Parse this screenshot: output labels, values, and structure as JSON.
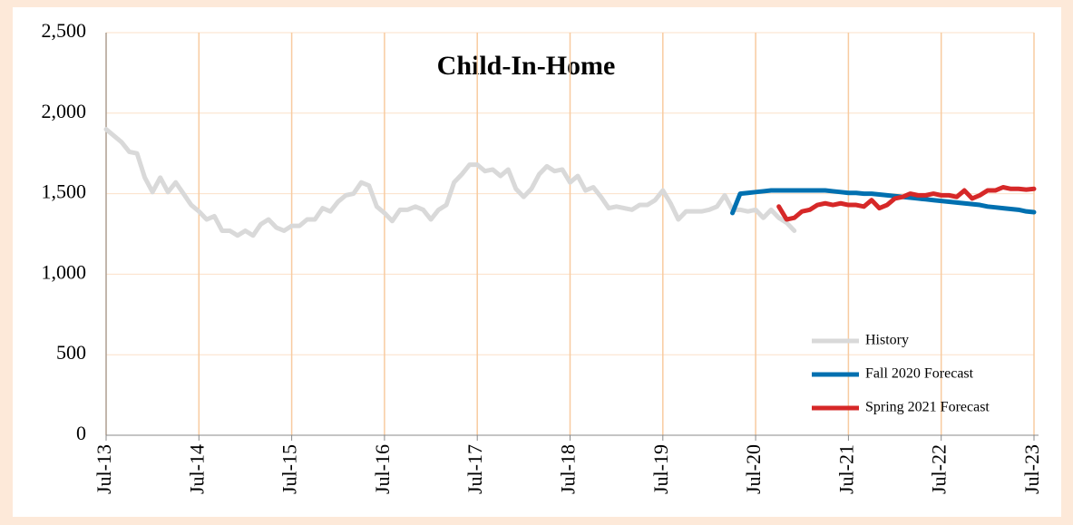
{
  "chart_data": {
    "type": "line",
    "title": "Child-In-Home",
    "categories": [
      "Jul-13",
      null,
      null,
      null,
      null,
      null,
      null,
      null,
      null,
      null,
      null,
      null,
      "Jul-14",
      null,
      null,
      null,
      null,
      null,
      null,
      null,
      null,
      null,
      null,
      null,
      "Jul-15",
      null,
      null,
      null,
      null,
      null,
      null,
      null,
      null,
      null,
      null,
      null,
      "Jul-16",
      null,
      null,
      null,
      null,
      null,
      null,
      null,
      null,
      null,
      null,
      null,
      "Jul-17",
      null,
      null,
      null,
      null,
      null,
      null,
      null,
      null,
      null,
      null,
      null,
      "Jul-18",
      null,
      null,
      null,
      null,
      null,
      null,
      null,
      null,
      null,
      null,
      null,
      "Jul-19",
      null,
      null,
      null,
      null,
      null,
      null,
      null,
      null,
      null,
      null,
      null,
      "Jul-20",
      null,
      null,
      null,
      null,
      null,
      null,
      null,
      null,
      null,
      null,
      null,
      "Jul-21",
      null,
      null,
      null,
      null,
      null,
      null,
      null,
      null,
      null,
      null,
      null,
      "Jul-22",
      null,
      null,
      null,
      null,
      null,
      null,
      null,
      null,
      null,
      null,
      null,
      "Jul-23"
    ],
    "series": [
      {
        "name": "History",
        "color": "#d9d9d9",
        "values": [
          1900,
          1860,
          1820,
          1760,
          1750,
          1600,
          1510,
          1600,
          1510,
          1570,
          1500,
          1430,
          1390,
          1340,
          1360,
          1270,
          1270,
          1240,
          1270,
          1240,
          1310,
          1340,
          1290,
          1270,
          1300,
          1300,
          1340,
          1340,
          1410,
          1390,
          1450,
          1490,
          1500,
          1570,
          1550,
          1420,
          1380,
          1330,
          1400,
          1400,
          1420,
          1400,
          1340,
          1400,
          1430,
          1570,
          1620,
          1680,
          1680,
          1640,
          1650,
          1610,
          1650,
          1530,
          1480,
          1530,
          1620,
          1670,
          1640,
          1650,
          1570,
          1610,
          1520,
          1540,
          1480,
          1410,
          1420,
          1410,
          1400,
          1430,
          1430,
          1460,
          1520,
          1440,
          1340,
          1390,
          1390,
          1390,
          1400,
          1420,
          1490,
          1400,
          1400,
          1390,
          1400,
          1350,
          1400,
          1350,
          1320,
          1270,
          null,
          null,
          null,
          null,
          null,
          null,
          null,
          null,
          null,
          null,
          null,
          null,
          null,
          null,
          null,
          null,
          null,
          null,
          null,
          null,
          null,
          null,
          null,
          null,
          null,
          null,
          null,
          null,
          null,
          null,
          null
        ]
      },
      {
        "name": "Fall 2020 Forecast",
        "color": "#0070b0",
        "values": [
          null,
          null,
          null,
          null,
          null,
          null,
          null,
          null,
          null,
          null,
          null,
          null,
          null,
          null,
          null,
          null,
          null,
          null,
          null,
          null,
          null,
          null,
          null,
          null,
          null,
          null,
          null,
          null,
          null,
          null,
          null,
          null,
          null,
          null,
          null,
          null,
          null,
          null,
          null,
          null,
          null,
          null,
          null,
          null,
          null,
          null,
          null,
          null,
          null,
          null,
          null,
          null,
          null,
          null,
          null,
          null,
          null,
          null,
          null,
          null,
          null,
          null,
          null,
          null,
          null,
          null,
          null,
          null,
          null,
          null,
          null,
          null,
          null,
          null,
          null,
          null,
          null,
          null,
          null,
          null,
          null,
          1380,
          1500,
          1505,
          1510,
          1515,
          1520,
          1520,
          1520,
          1520,
          1520,
          1520,
          1520,
          1520,
          1515,
          1510,
          1505,
          1505,
          1500,
          1500,
          1495,
          1490,
          1485,
          1480,
          1475,
          1470,
          1465,
          1460,
          1455,
          1450,
          1445,
          1440,
          1435,
          1430,
          1420,
          1415,
          1410,
          1405,
          1400,
          1390,
          1385
        ]
      },
      {
        "name": "Spring 2021 Forecast",
        "color": "#d62828",
        "values": [
          null,
          null,
          null,
          null,
          null,
          null,
          null,
          null,
          null,
          null,
          null,
          null,
          null,
          null,
          null,
          null,
          null,
          null,
          null,
          null,
          null,
          null,
          null,
          null,
          null,
          null,
          null,
          null,
          null,
          null,
          null,
          null,
          null,
          null,
          null,
          null,
          null,
          null,
          null,
          null,
          null,
          null,
          null,
          null,
          null,
          null,
          null,
          null,
          null,
          null,
          null,
          null,
          null,
          null,
          null,
          null,
          null,
          null,
          null,
          null,
          null,
          null,
          null,
          null,
          null,
          null,
          null,
          null,
          null,
          null,
          null,
          null,
          null,
          null,
          null,
          null,
          null,
          null,
          null,
          null,
          null,
          null,
          null,
          null,
          null,
          null,
          null,
          1420,
          1340,
          1350,
          1390,
          1400,
          1430,
          1440,
          1430,
          1440,
          1430,
          1430,
          1420,
          1460,
          1410,
          1430,
          1470,
          1480,
          1500,
          1490,
          1490,
          1500,
          1490,
          1490,
          1480,
          1520,
          1470,
          1490,
          1520,
          1520,
          1540,
          1530,
          1530,
          1525,
          1530
        ]
      }
    ],
    "ylim": [
      0,
      2500
    ],
    "yticks": [
      0,
      {
        "value": 500,
        "label": "500"
      },
      {
        "value": 1000,
        "label": "1,000"
      },
      {
        "value": 1500,
        "label": "1,500"
      },
      {
        "value": 2000,
        "label": "2,000"
      },
      {
        "value": 2500,
        "label": "2,500"
      }
    ],
    "grid": true,
    "legend": "lower right"
  }
}
